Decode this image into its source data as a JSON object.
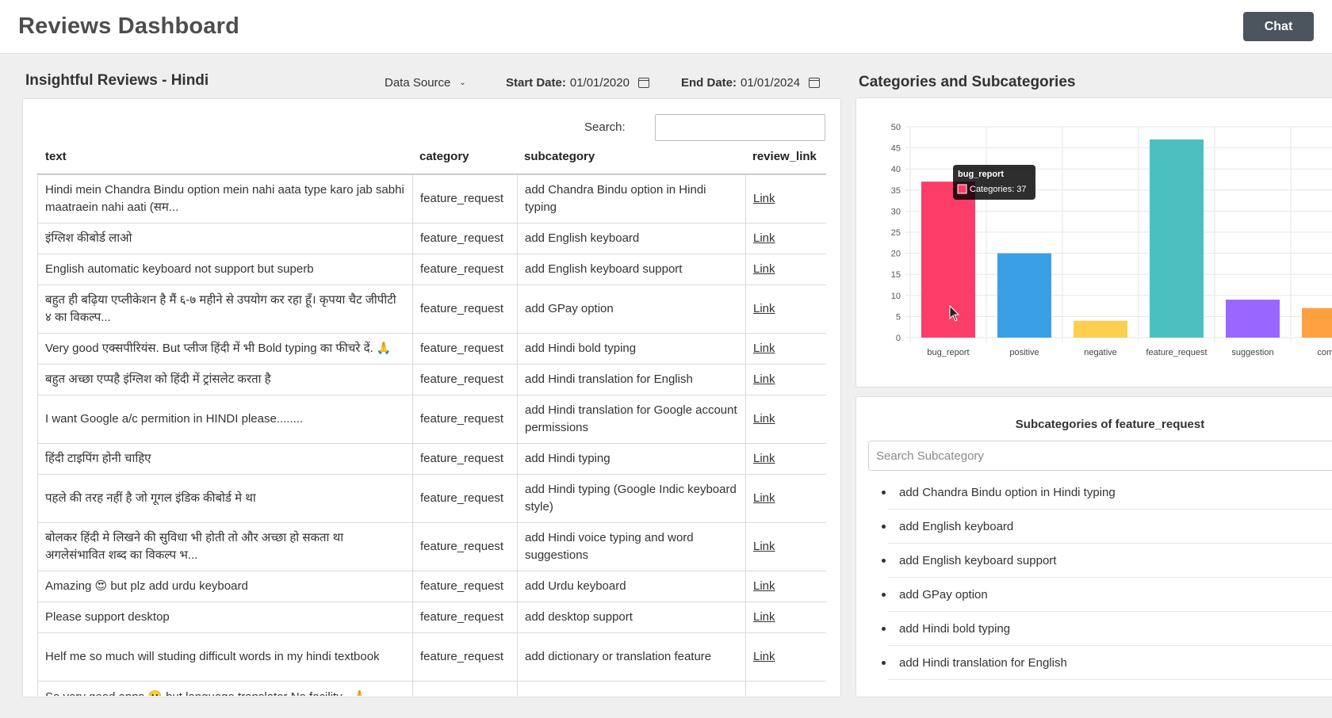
{
  "header": {
    "title": "Reviews Dashboard",
    "chat_label": "Chat"
  },
  "left": {
    "title": "Insightful Reviews - Hindi",
    "data_source_label": "Data Source",
    "start_label": "Start Date:",
    "start_value": "01/01/2020",
    "end_label": "End Date:",
    "end_value": "01/01/2024",
    "search_label": "Search:",
    "search_value": "",
    "columns": [
      "text",
      "category",
      "subcategory",
      "review_link"
    ],
    "rows": [
      {
        "text": "Hindi mein Chandra Bindu option mein nahi aata type karo jab sabhi maatraein nahi aati (सम...",
        "category": "feature_request",
        "subcategory": "add Chandra Bindu option in Hindi typing",
        "link": "Link"
      },
      {
        "text": "इंग्लिश कीबोर्ड लाओ",
        "category": "feature_request",
        "subcategory": "add English keyboard",
        "link": "Link"
      },
      {
        "text": "English automatic keyboard not support but superb",
        "category": "feature_request",
        "subcategory": "add English keyboard support",
        "link": "Link"
      },
      {
        "text": "बहुत ही बढ़िया एप्लीकेशन है मैं ६-७ महीने से उपयोग कर रहा हूँ। कृपया चैट जीपीटी ४ का विकल्प...",
        "category": "feature_request",
        "subcategory": "add GPay option",
        "link": "Link"
      },
      {
        "text": "Very good एक्सपीरियंस. But प्लीज हिंदी में भी Bold typing का फीचरे दें. 🙏",
        "category": "feature_request",
        "subcategory": "add Hindi bold typing",
        "link": "Link"
      },
      {
        "text": "बहुत अच्छा एप्पहै इंग्लिश को हिंदी में ट्रांसलेट करता है",
        "category": "feature_request",
        "subcategory": "add Hindi translation for English",
        "link": "Link"
      },
      {
        "text": "I want Google a/c permition in HINDI please........",
        "category": "feature_request",
        "subcategory": "add Hindi translation for Google account permissions",
        "link": "Link"
      },
      {
        "text": "हिंदी टाइपिंग होनी चाहिए",
        "category": "feature_request",
        "subcategory": "add Hindi typing",
        "link": "Link"
      },
      {
        "text": "पहले की तरह नहीं है जो गूगल इंडिक कीबोर्ड मे था",
        "category": "feature_request",
        "subcategory": "add Hindi typing (Google Indic keyboard style)",
        "link": "Link"
      },
      {
        "text": "बोलकर हिंदी मे लिखने की सुविधा भी होती तो और अच्छा हो सकता था अगलेसंभावित शब्द का विकल्प भ...",
        "category": "feature_request",
        "subcategory": "add Hindi voice typing and word suggestions",
        "link": "Link"
      },
      {
        "text": "Amazing 😍 but plz add urdu keyboard",
        "category": "feature_request",
        "subcategory": "add Urdu keyboard",
        "link": "Link"
      },
      {
        "text": "Please support desktop",
        "category": "feature_request",
        "subcategory": "add desktop support",
        "link": "Link"
      },
      {
        "text": "Helf me so much will studing difficult words in my hindi textbook",
        "category": "feature_request",
        "subcategory": "add dictionary or translation feature",
        "link": "Link"
      },
      {
        "text": "So very good apps 🙂 but language translator No facility . 🙏",
        "category": "",
        "subcategory": "",
        "link": ""
      }
    ]
  },
  "right": {
    "title": "Categories and Subcategories",
    "tooltip": {
      "title": "bug_report",
      "body": "Categories: 37"
    },
    "sub_title": "Subcategories of feature_request",
    "sub_search_placeholder": "Search Subcategory",
    "sub_items": [
      "add Chandra Bindu option in Hindi typing",
      "add English keyboard",
      "add English keyboard support",
      "add GPay option",
      "add Hindi bold typing",
      "add Hindi translation for English"
    ]
  },
  "chart_data": {
    "type": "bar",
    "categories": [
      "bug_report",
      "positive",
      "negative",
      "feature_request",
      "suggestion",
      "compl"
    ],
    "values": [
      37,
      20,
      4,
      47,
      9,
      7
    ],
    "colors": [
      "#fb3d68",
      "#3b9fe6",
      "#fccf4e",
      "#4cc0c0",
      "#9966ff",
      "#fe9f40"
    ],
    "ylim": [
      0,
      50
    ],
    "yticks": [
      0,
      5,
      10,
      15,
      20,
      25,
      30,
      35,
      40,
      45,
      50
    ],
    "grid": true,
    "title": "",
    "xlabel": "",
    "ylabel": ""
  }
}
